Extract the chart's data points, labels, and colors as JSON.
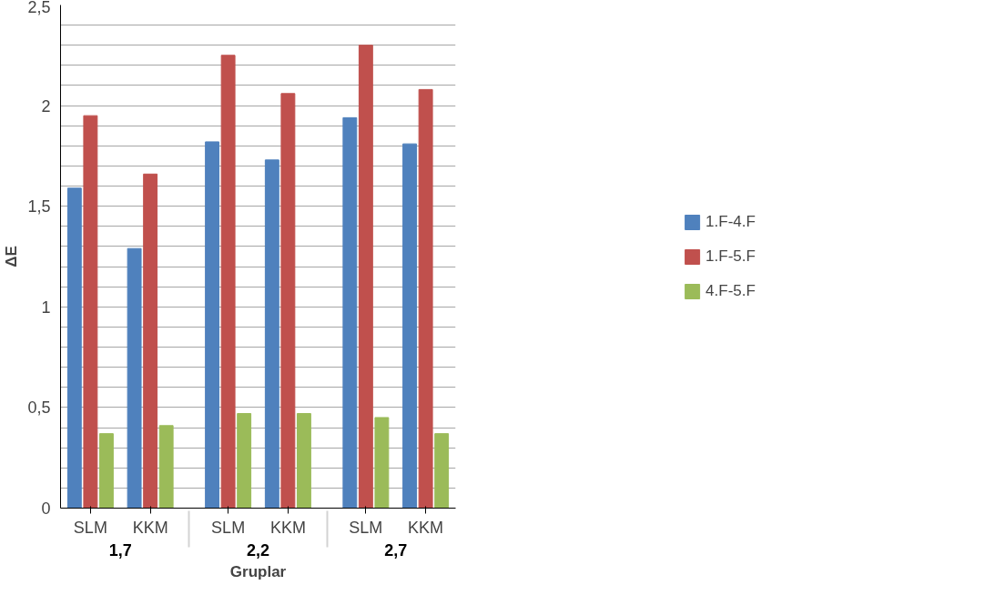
{
  "chart_data": {
    "type": "bar",
    "xlabel": "Gruplar",
    "ylabel": "ΔE",
    "categories": [
      "SLM",
      "KKM",
      "SLM",
      "KKM",
      "SLM",
      "KKM"
    ],
    "annotations": [
      "1,7",
      "2,2",
      "2,7"
    ],
    "series": [
      {
        "name": "1.F-4.F",
        "color": "#4f81bd",
        "values": [
          1.59,
          1.29,
          1.82,
          1.73,
          1.94,
          1.81
        ]
      },
      {
        "name": "1.F-5.F",
        "color": "#c0504d",
        "values": [
          1.95,
          1.66,
          2.25,
          2.06,
          2.3,
          2.08
        ]
      },
      {
        "name": "4.F-5.F",
        "color": "#9bbb59",
        "values": [
          0.37,
          0.41,
          0.47,
          0.47,
          0.45,
          0.37
        ]
      }
    ],
    "ylim": [
      0,
      2.5
    ],
    "yticks": [
      0,
      {
        "value": 0.1,
        "label": null
      },
      {
        "value": 0.2,
        "label": null
      },
      {
        "value": 0.3,
        "label": null
      },
      {
        "value": 0.4,
        "label": null
      },
      {
        "value": 0.5,
        "label": "0,5"
      },
      {
        "value": 0.6,
        "label": null
      },
      {
        "value": 0.7,
        "label": null
      },
      {
        "value": 0.8,
        "label": null
      },
      {
        "value": 0.9,
        "label": null
      },
      1,
      {
        "value": 1.1,
        "label": null
      },
      {
        "value": 1.2,
        "label": null
      },
      {
        "value": 1.3,
        "label": null
      },
      {
        "value": 1.4,
        "label": null
      },
      {
        "value": 1.5,
        "label": "1,5"
      },
      {
        "value": 1.6,
        "label": null
      },
      {
        "value": 1.7,
        "label": null
      },
      {
        "value": 1.8,
        "label": null
      },
      {
        "value": 1.9,
        "label": null
      },
      2,
      {
        "value": 2.1,
        "label": null
      },
      {
        "value": 2.2,
        "label": null
      },
      {
        "value": 2.3,
        "label": null
      },
      {
        "value": 2.4,
        "label": null
      },
      {
        "value": 2.5,
        "label": "2,5"
      }
    ],
    "grid": "y",
    "legend": "right"
  }
}
